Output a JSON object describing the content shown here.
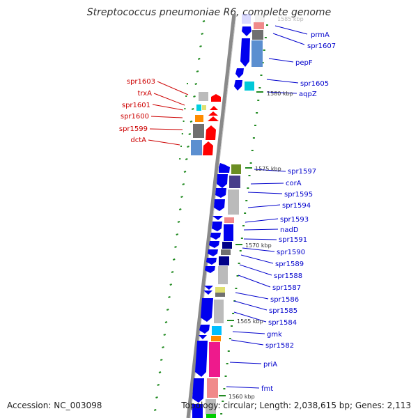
{
  "title": "Streptococcus pneumoniae R6, complete genome",
  "accession": "Accession: NC_003098",
  "topology": "Topology: circular; Length: 2,038,615 bp; Genes: 2,113",
  "colors": {
    "forward_gene": "#0000ee",
    "inset_gene": "#ff0000",
    "right_label": "#0000cc",
    "left_label": "#cc0000",
    "backbone": "#808080",
    "tick": "#228b22"
  },
  "kbp_labels": [
    "1585 kbp",
    "1580 kbp",
    "1575 kbp",
    "1570 kbp",
    "1565 kbp",
    "1560 kbp"
  ],
  "right_labels": [
    "prmA",
    "spr1607",
    "pepF",
    "spr1605",
    "aqpZ",
    "spr1597",
    "corA",
    "spr1595",
    "spr1594",
    "spr1593",
    "nadD",
    "spr1591",
    "spr1590",
    "spr1589",
    "spr1588",
    "spr1587",
    "spr1586",
    "spr1585",
    "spr1584",
    "gmk",
    "spr1582",
    "priA",
    "fmt"
  ],
  "left_labels": [
    "spr1603",
    "trxA",
    "spr1601",
    "spr1600",
    "spr1599",
    "dctA"
  ]
}
